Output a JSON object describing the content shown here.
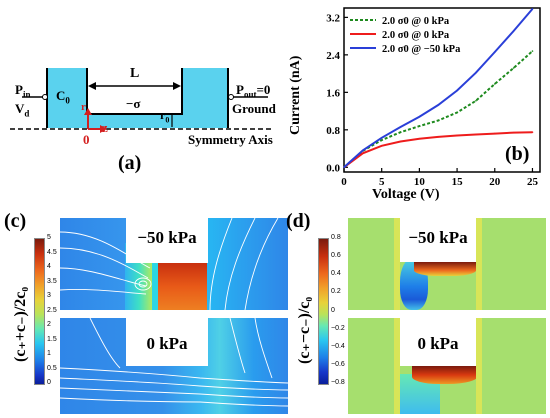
{
  "panel_a": {
    "label": "(a)",
    "P_in": "P",
    "P_in_sub": "in",
    "V_d": "V",
    "V_d_sub": "d",
    "C_0": "C",
    "C_0_sub": "0",
    "L": "L",
    "minus_sigma": "−σ",
    "r": "r",
    "r0": "r",
    "r0_sub": "0",
    "origin": "0",
    "z": "z",
    "P_out": "P",
    "P_out_sub": "out",
    "P_out_value": "=0",
    "ground": "Ground",
    "symmetry_axis": "Symmetry Axis",
    "colors": {
      "reservoir": "#5ad2ee",
      "channel": "#5ad2ee"
    }
  },
  "panel_b": {
    "label": "(b)"
  },
  "chart_data": {
    "type": "line",
    "xlabel": "Voltage (V)",
    "ylabel": "Current (nA)",
    "xlim": [
      0,
      26
    ],
    "ylim": [
      -0.1,
      3.4
    ],
    "xticks": [
      0,
      5,
      10,
      15,
      20,
      25
    ],
    "yticks": [
      0.0,
      0.8,
      1.6,
      2.4,
      3.2
    ],
    "ytick_labels": [
      "0.0",
      "0.8",
      "1.6",
      "2.4",
      "3.2"
    ],
    "legend_position": "top-left",
    "series": [
      {
        "name": "2.0 σ0 @ 0 kPa",
        "color": "#1e8a1e",
        "dash": "3,2",
        "x": [
          0,
          2.5,
          5,
          7.5,
          10,
          12.5,
          15,
          17.5,
          20,
          22.5,
          25
        ],
        "y": [
          0,
          0.35,
          0.58,
          0.75,
          0.88,
          1.0,
          1.17,
          1.42,
          1.78,
          2.12,
          2.48
        ]
      },
      {
        "name": "2.0 σ0 @ 0 kPa",
        "color": "#ee1c1c",
        "dash": "",
        "x": [
          0,
          2.5,
          5,
          7.5,
          10,
          12.5,
          15,
          17.5,
          20,
          22.5,
          25
        ],
        "y": [
          0,
          0.3,
          0.46,
          0.55,
          0.61,
          0.65,
          0.68,
          0.7,
          0.72,
          0.74,
          0.75
        ]
      },
      {
        "name": "2.0 σ0 @ −50 kPa",
        "color": "#2a3fd8",
        "dash": "",
        "x": [
          0,
          2.5,
          5,
          7.5,
          10,
          12.5,
          15,
          17.5,
          20,
          22.5,
          25
        ],
        "y": [
          0,
          0.36,
          0.63,
          0.86,
          1.08,
          1.33,
          1.64,
          2.02,
          2.46,
          2.91,
          3.38
        ]
      }
    ]
  },
  "panel_c": {
    "label": "(c)",
    "ylabel": "(c₊+c₋)/2c₀",
    "top_label": "−50 kPa",
    "bottom_label": "0 kPa",
    "colorbar_ticks": [
      "5",
      "4.5",
      "4",
      "3.5",
      "3",
      "2.5",
      "2",
      "1.5",
      "1",
      "0.5",
      "0"
    ]
  },
  "panel_d": {
    "label": "(d)",
    "ylabel": "(c₊−c₋)/c₀",
    "top_label": "−50 kPa",
    "bottom_label": "0 kPa",
    "colorbar_ticks": [
      "0.8",
      "0.6",
      "0.4",
      "0.2",
      "0",
      "−0.2",
      "−0.4",
      "−0.6",
      "−0.8"
    ]
  }
}
